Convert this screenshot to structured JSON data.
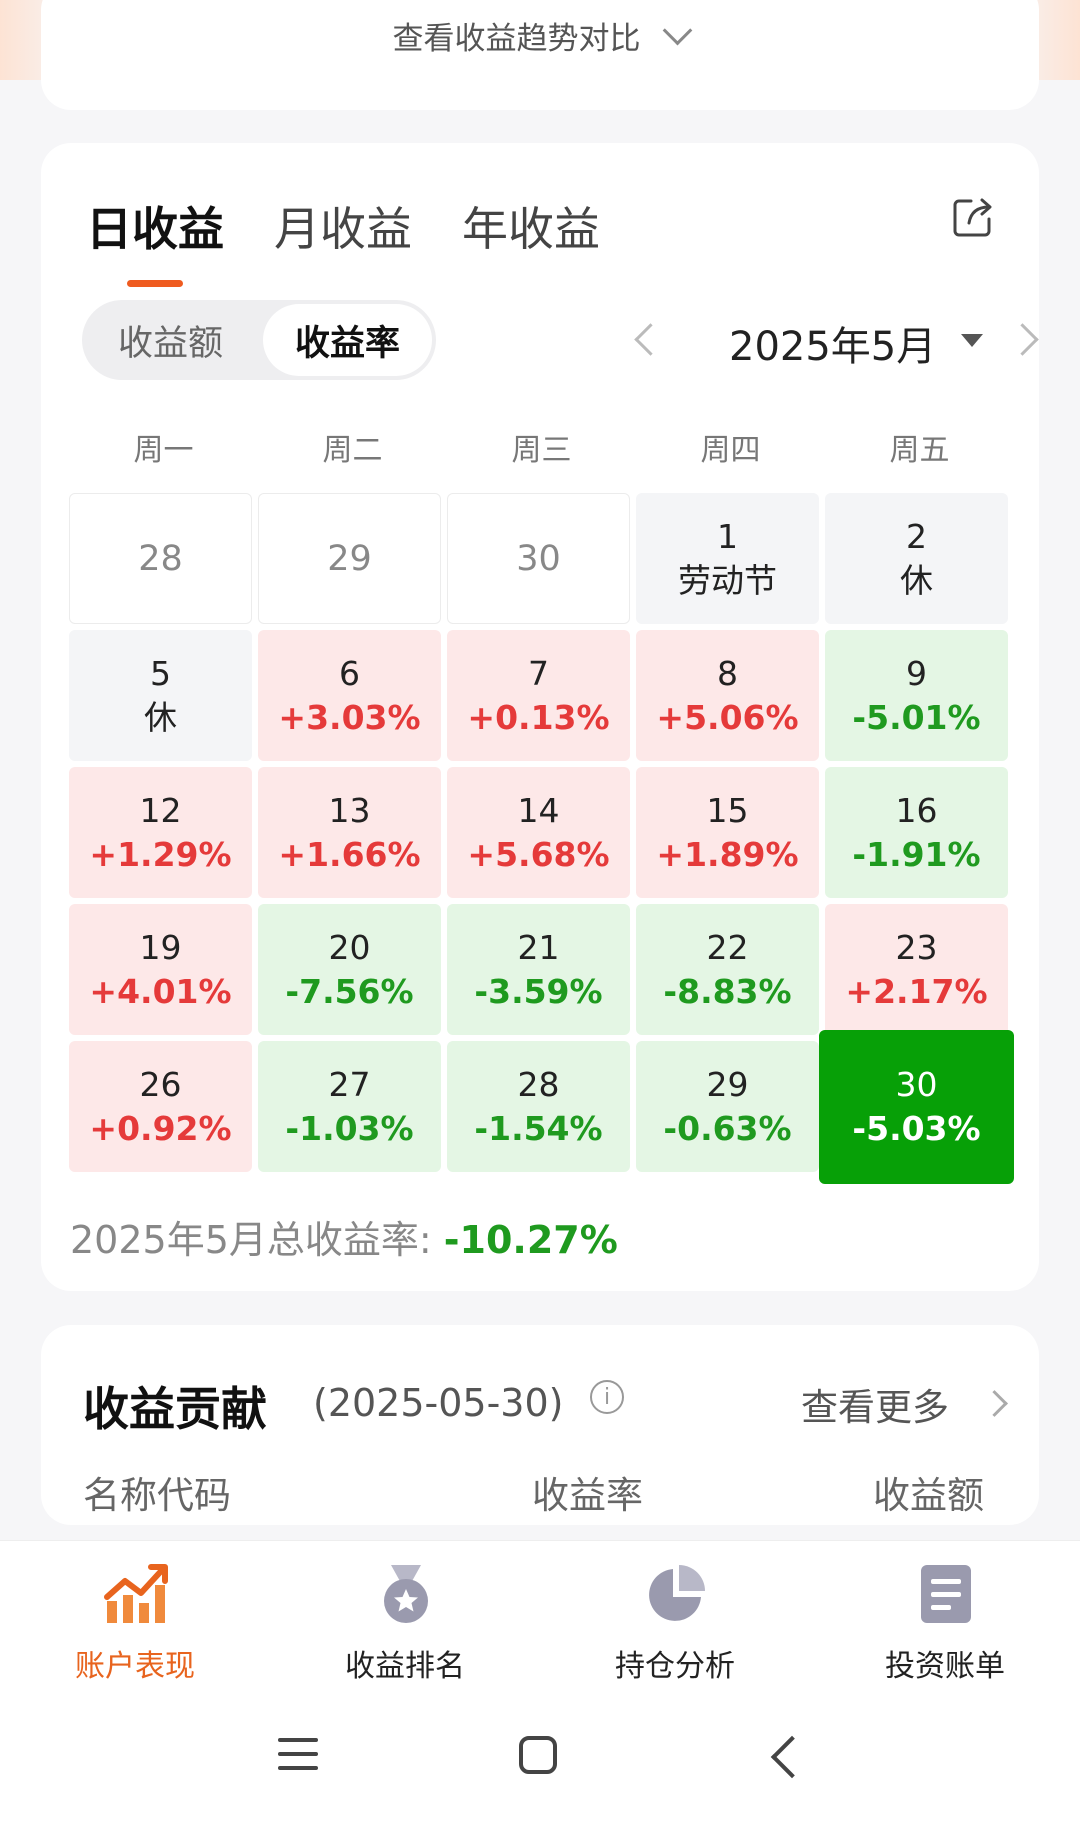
{
  "trend_link": "查看收益趋势对比",
  "tabs": [
    "日收益",
    "月收益",
    "年收益"
  ],
  "segment": [
    "收益额",
    "收益率"
  ],
  "month_label": "2025年5月",
  "weekdays": [
    "周一",
    "周二",
    "周三",
    "周四",
    "周五"
  ],
  "calendar": [
    [
      {
        "day": "28",
        "value": "",
        "type": "prev"
      },
      {
        "day": "29",
        "value": "",
        "type": "prev"
      },
      {
        "day": "30",
        "value": "",
        "type": "prev"
      },
      {
        "day": "1",
        "value": "劳动节",
        "type": "holiday"
      },
      {
        "day": "2",
        "value": "休",
        "type": "holiday"
      }
    ],
    [
      {
        "day": "5",
        "value": "休",
        "type": "holiday"
      },
      {
        "day": "6",
        "value": "+3.03%",
        "type": "up"
      },
      {
        "day": "7",
        "value": "+0.13%",
        "type": "up"
      },
      {
        "day": "8",
        "value": "+5.06%",
        "type": "up"
      },
      {
        "day": "9",
        "value": "-5.01%",
        "type": "down"
      }
    ],
    [
      {
        "day": "12",
        "value": "+1.29%",
        "type": "up"
      },
      {
        "day": "13",
        "value": "+1.66%",
        "type": "up"
      },
      {
        "day": "14",
        "value": "+5.68%",
        "type": "up"
      },
      {
        "day": "15",
        "value": "+1.89%",
        "type": "up"
      },
      {
        "day": "16",
        "value": "-1.91%",
        "type": "down"
      }
    ],
    [
      {
        "day": "19",
        "value": "+4.01%",
        "type": "up"
      },
      {
        "day": "20",
        "value": "-7.56%",
        "type": "down"
      },
      {
        "day": "21",
        "value": "-3.59%",
        "type": "down"
      },
      {
        "day": "22",
        "value": "-8.83%",
        "type": "down"
      },
      {
        "day": "23",
        "value": "+2.17%",
        "type": "up"
      }
    ],
    [
      {
        "day": "26",
        "value": "+0.92%",
        "type": "up"
      },
      {
        "day": "27",
        "value": "-1.03%",
        "type": "down"
      },
      {
        "day": "28",
        "value": "-1.54%",
        "type": "down"
      },
      {
        "day": "29",
        "value": "-0.63%",
        "type": "down"
      },
      {
        "day": "30",
        "value": "-5.03%",
        "type": "sel"
      }
    ]
  ],
  "total": {
    "label": "2025年5月总收益率: ",
    "value": "-10.27%"
  },
  "contribution": {
    "title": "收益贡献",
    "date": "(2025-05-30)",
    "more": "查看更多",
    "columns": [
      "名称代码",
      "收益率",
      "收益额"
    ]
  },
  "bottom_nav": [
    "账户表现",
    "收益排名",
    "持仓分析",
    "投资账单"
  ],
  "colors": {
    "up": "#e53a3a",
    "down": "#1f9a1f",
    "selected": "#07a007",
    "accent": "#ef5b1f"
  }
}
